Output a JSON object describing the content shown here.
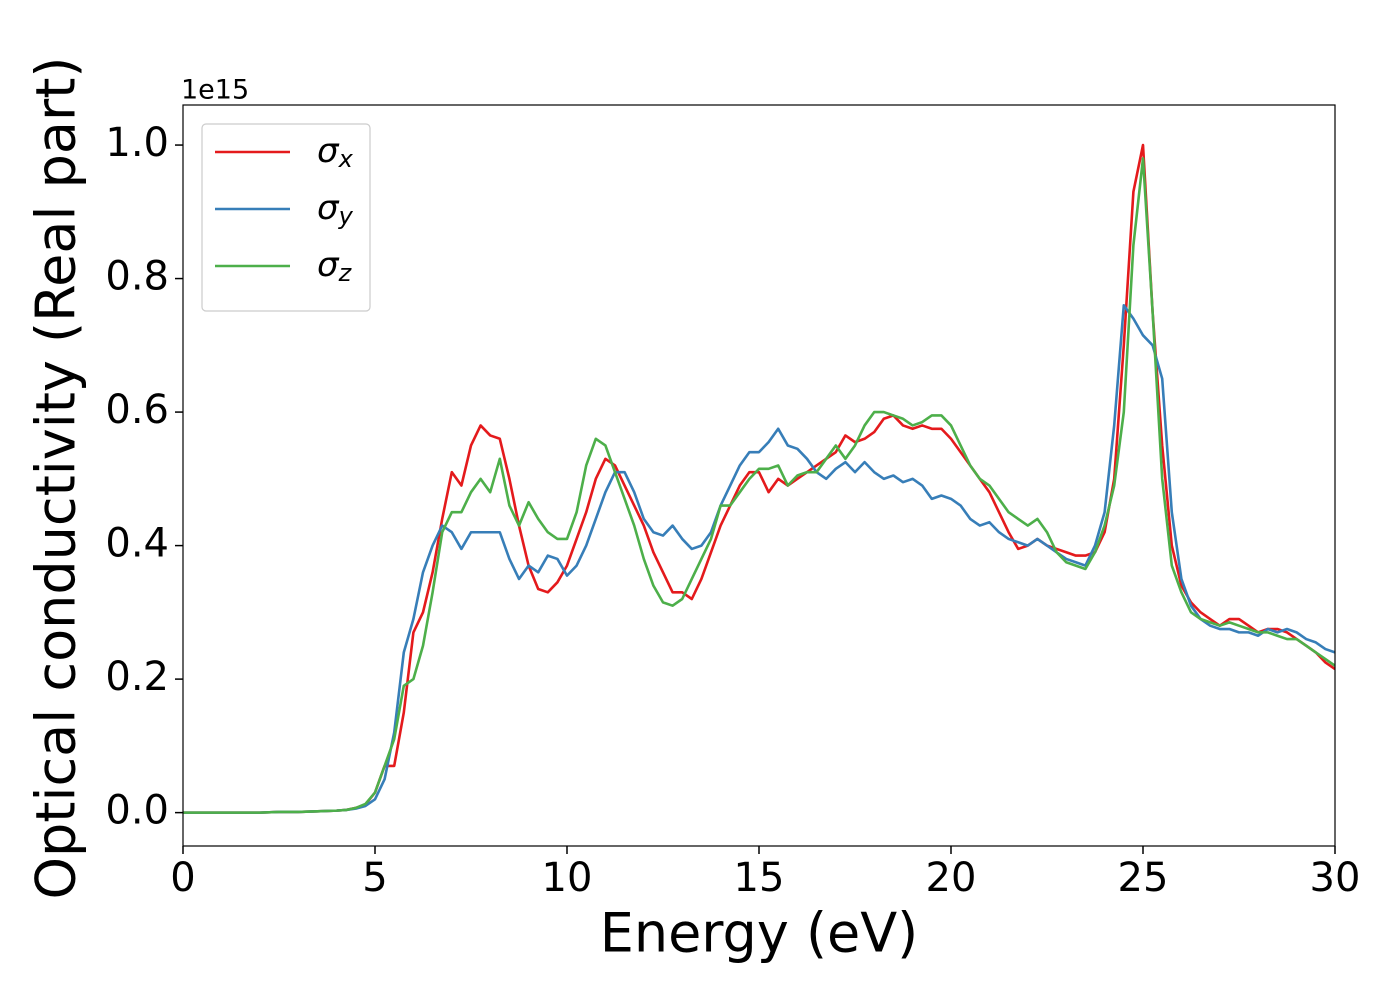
{
  "chart_data": {
    "type": "line",
    "xlabel": "Energy (eV)",
    "ylabel": "Optical conductivity (Real part)",
    "y_offset_label": "1e15",
    "xlim": [
      0,
      30
    ],
    "ylim": [
      -0.05,
      1.06
    ],
    "xticks": [
      0,
      5,
      10,
      15,
      20,
      25,
      30
    ],
    "yticks": [
      {
        "value": 0,
        "label": "0.0"
      },
      0.2,
      0.4,
      0.6,
      0.8,
      {
        "value": 1,
        "label": "1.0"
      }
    ],
    "grid": false,
    "legend": "upper left",
    "x": [
      0,
      0.5,
      1,
      1.5,
      2,
      2.5,
      3,
      3.5,
      4,
      4.25,
      4.5,
      4.75,
      5,
      5.25,
      5.5,
      5.75,
      6,
      6.25,
      6.5,
      6.75,
      7,
      7.25,
      7.5,
      7.75,
      8,
      8.25,
      8.5,
      8.75,
      9,
      9.25,
      9.5,
      9.75,
      10,
      10.25,
      10.5,
      10.75,
      11,
      11.25,
      11.5,
      11.75,
      12,
      12.25,
      12.5,
      12.75,
      13,
      13.25,
      13.5,
      13.75,
      14,
      14.25,
      14.5,
      14.75,
      15,
      15.25,
      15.5,
      15.75,
      16,
      16.25,
      16.5,
      16.75,
      17,
      17.25,
      17.5,
      17.75,
      18,
      18.25,
      18.5,
      18.75,
      19,
      19.25,
      19.5,
      19.75,
      20,
      20.25,
      20.5,
      20.75,
      21,
      21.25,
      21.5,
      21.75,
      22,
      22.25,
      22.5,
      22.75,
      23,
      23.25,
      23.5,
      23.75,
      24,
      24.25,
      24.5,
      24.75,
      25,
      25.25,
      25.5,
      25.75,
      26,
      26.25,
      26.5,
      26.75,
      27,
      27.25,
      27.5,
      27.75,
      28,
      28.25,
      28.5,
      28.75,
      29,
      29.25,
      29.5,
      29.75,
      30
    ],
    "series": [
      {
        "name": "σx",
        "color": "#e41a1c",
        "values": [
          0,
          0,
          0,
          0,
          0,
          0.001,
          0.001,
          0.002,
          0.003,
          0.004,
          0.007,
          0.012,
          0.03,
          0.07,
          0.07,
          0.15,
          0.27,
          0.3,
          0.36,
          0.44,
          0.51,
          0.49,
          0.55,
          0.58,
          0.565,
          0.56,
          0.5,
          0.43,
          0.37,
          0.335,
          0.33,
          0.345,
          0.37,
          0.41,
          0.45,
          0.5,
          0.53,
          0.52,
          0.49,
          0.46,
          0.43,
          0.39,
          0.36,
          0.33,
          0.33,
          0.32,
          0.35,
          0.39,
          0.43,
          0.46,
          0.49,
          0.51,
          0.51,
          0.48,
          0.5,
          0.49,
          0.5,
          0.51,
          0.52,
          0.53,
          0.54,
          0.565,
          0.555,
          0.56,
          0.57,
          0.59,
          0.595,
          0.58,
          0.575,
          0.58,
          0.575,
          0.575,
          0.56,
          0.54,
          0.52,
          0.5,
          0.48,
          0.45,
          0.42,
          0.395,
          0.4,
          0.41,
          0.4,
          0.395,
          0.39,
          0.385,
          0.385,
          0.39,
          0.42,
          0.5,
          0.7,
          0.93,
          1.0,
          0.75,
          0.55,
          0.4,
          0.34,
          0.315,
          0.3,
          0.29,
          0.28,
          0.29,
          0.29,
          0.28,
          0.27,
          0.275,
          0.275,
          0.27,
          0.26,
          0.25,
          0.24,
          0.225,
          0.215
        ]
      },
      {
        "name": "σy",
        "color": "#377eb8",
        "values": [
          0,
          0,
          0,
          0,
          0,
          0.001,
          0.001,
          0.002,
          0.003,
          0.004,
          0.006,
          0.01,
          0.02,
          0.05,
          0.12,
          0.24,
          0.29,
          0.36,
          0.4,
          0.43,
          0.42,
          0.395,
          0.42,
          0.42,
          0.42,
          0.42,
          0.38,
          0.35,
          0.37,
          0.36,
          0.385,
          0.38,
          0.355,
          0.37,
          0.4,
          0.44,
          0.48,
          0.51,
          0.51,
          0.48,
          0.44,
          0.42,
          0.415,
          0.43,
          0.41,
          0.395,
          0.4,
          0.42,
          0.46,
          0.49,
          0.52,
          0.54,
          0.54,
          0.555,
          0.575,
          0.55,
          0.545,
          0.53,
          0.51,
          0.5,
          0.515,
          0.525,
          0.51,
          0.525,
          0.51,
          0.5,
          0.505,
          0.495,
          0.5,
          0.49,
          0.47,
          0.475,
          0.47,
          0.46,
          0.44,
          0.43,
          0.435,
          0.42,
          0.41,
          0.405,
          0.4,
          0.41,
          0.4,
          0.39,
          0.38,
          0.375,
          0.37,
          0.4,
          0.45,
          0.58,
          0.76,
          0.74,
          0.715,
          0.7,
          0.65,
          0.45,
          0.35,
          0.31,
          0.29,
          0.28,
          0.275,
          0.275,
          0.27,
          0.27,
          0.265,
          0.275,
          0.27,
          0.275,
          0.27,
          0.26,
          0.255,
          0.245,
          0.24
        ]
      },
      {
        "name": "σz",
        "color": "#4daf4a",
        "values": [
          0,
          0,
          0,
          0,
          0,
          0.001,
          0.001,
          0.002,
          0.003,
          0.004,
          0.007,
          0.013,
          0.03,
          0.07,
          0.11,
          0.19,
          0.2,
          0.25,
          0.33,
          0.42,
          0.45,
          0.45,
          0.48,
          0.5,
          0.48,
          0.53,
          0.46,
          0.43,
          0.465,
          0.44,
          0.42,
          0.41,
          0.41,
          0.45,
          0.52,
          0.56,
          0.55,
          0.51,
          0.47,
          0.43,
          0.38,
          0.34,
          0.315,
          0.31,
          0.32,
          0.35,
          0.38,
          0.41,
          0.46,
          0.46,
          0.48,
          0.5,
          0.515,
          0.515,
          0.52,
          0.49,
          0.505,
          0.51,
          0.51,
          0.53,
          0.55,
          0.53,
          0.55,
          0.58,
          0.6,
          0.6,
          0.595,
          0.59,
          0.58,
          0.585,
          0.595,
          0.595,
          0.58,
          0.55,
          0.52,
          0.5,
          0.49,
          0.47,
          0.45,
          0.44,
          0.43,
          0.44,
          0.42,
          0.39,
          0.375,
          0.37,
          0.365,
          0.39,
          0.43,
          0.49,
          0.6,
          0.85,
          0.98,
          0.75,
          0.5,
          0.37,
          0.33,
          0.3,
          0.29,
          0.285,
          0.28,
          0.285,
          0.28,
          0.275,
          0.27,
          0.27,
          0.265,
          0.26,
          0.26,
          0.25,
          0.24,
          0.23,
          0.22
        ]
      }
    ]
  }
}
